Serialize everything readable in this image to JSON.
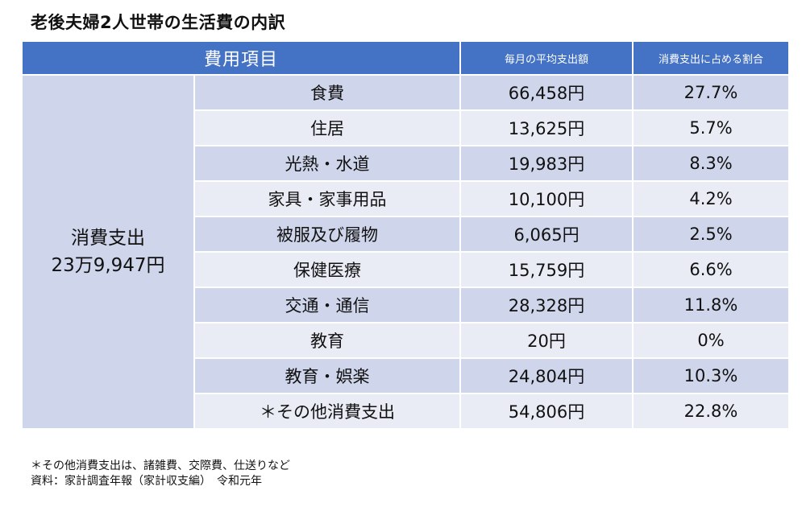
{
  "title": "老後夫婦2人世帯の生活費の内訳",
  "table": {
    "headers": {
      "item": "費用項目",
      "monthly": "毎月の平均支出額",
      "ratio": "消費支出に占める割合"
    },
    "category": {
      "name": "消費支出",
      "total": "23万9,947円"
    },
    "rows": [
      {
        "item": "食費",
        "amount": "66,458円",
        "ratio": "27.7%"
      },
      {
        "item": "住居",
        "amount": "13,625円",
        "ratio": "5.7%"
      },
      {
        "item": "光熱・水道",
        "amount": "19,983円",
        "ratio": "8.3%"
      },
      {
        "item": "家具・家事用品",
        "amount": "10,100円",
        "ratio": "4.2%"
      },
      {
        "item": "被服及び履物",
        "amount": "6,065円",
        "ratio": "2.5%"
      },
      {
        "item": "保健医療",
        "amount": "15,759円",
        "ratio": "6.6%"
      },
      {
        "item": "交通・通信",
        "amount": "28,328円",
        "ratio": "11.8%"
      },
      {
        "item": "教育",
        "amount": "20円",
        "ratio": "0%"
      },
      {
        "item": "教育・娯楽",
        "amount": "24,804円",
        "ratio": "10.3%"
      },
      {
        "item": "＊その他消費支出",
        "amount": "54,806円",
        "ratio": "22.8%"
      }
    ]
  },
  "notes": {
    "footnote": "＊その他消費支出は、諸雑費、交際費、仕送りなど",
    "source": "資料：家計調査年報（家計収支編）　令和元年"
  },
  "colors": {
    "header": "#4472c4",
    "row_dark": "#cfd5ea",
    "row_light": "#e9ebf5"
  }
}
